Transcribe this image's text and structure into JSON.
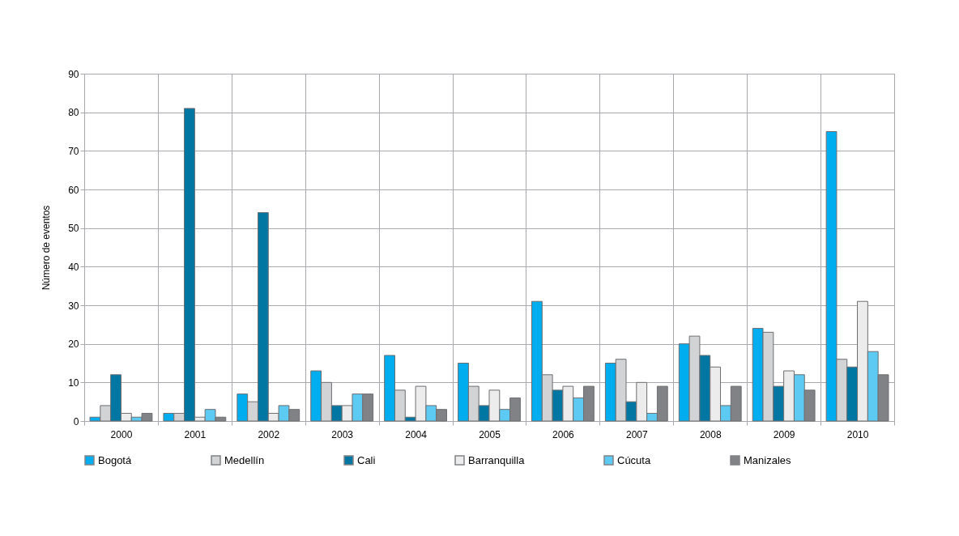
{
  "chart_data": {
    "type": "bar",
    "ylabel": "Número de eventos",
    "categories": [
      "2000",
      "2001",
      "2002",
      "2003",
      "2004",
      "2005",
      "2006",
      "2007",
      "2008",
      "2009",
      "2010"
    ],
    "series": [
      {
        "name": "Bogotá",
        "color": "#00adef",
        "values": [
          1,
          2,
          7,
          13,
          17,
          15,
          31,
          15,
          20,
          24,
          75
        ]
      },
      {
        "name": "Medellín",
        "color": "#d1d3d4",
        "values": [
          4,
          2,
          5,
          10,
          8,
          9,
          12,
          16,
          22,
          23,
          16
        ]
      },
      {
        "name": "Cali",
        "color": "#0077a3",
        "values": [
          12,
          81,
          54,
          4,
          1,
          4,
          8,
          5,
          17,
          9,
          14
        ]
      },
      {
        "name": "Barranquilla",
        "color": "#ececec",
        "values": [
          2,
          1,
          2,
          4,
          9,
          8,
          9,
          10,
          14,
          13,
          31
        ]
      },
      {
        "name": "Cúcuta",
        "color": "#5ccaf2",
        "values": [
          1,
          3,
          4,
          7,
          4,
          3,
          6,
          2,
          4,
          12,
          18
        ]
      },
      {
        "name": "Manizales",
        "color": "#808285",
        "values": [
          2,
          1,
          3,
          7,
          3,
          6,
          9,
          9,
          9,
          8,
          12
        ]
      }
    ],
    "ylim": [
      0,
      90
    ],
    "yticks": [
      0,
      10,
      20,
      30,
      40,
      50,
      60,
      70,
      80,
      90
    ],
    "grid": true,
    "legend": "bottom"
  }
}
